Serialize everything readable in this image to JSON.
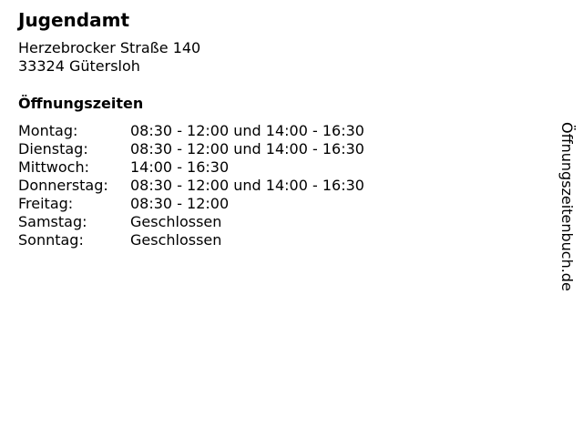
{
  "title": "Jugendamt",
  "address": {
    "street": "Herzebrocker Straße 140",
    "city": "33324 Gütersloh"
  },
  "hours_heading": "Öffnungszeiten",
  "hours": [
    {
      "day": "Montag:",
      "time": "08:30 - 12:00 und 14:00 - 16:30"
    },
    {
      "day": "Dienstag:",
      "time": "08:30 - 12:00 und 14:00 - 16:30"
    },
    {
      "day": "Mittwoch:",
      "time": "14:00 - 16:30"
    },
    {
      "day": "Donnerstag:",
      "time": "08:30 - 12:00 und 14:00 - 16:30"
    },
    {
      "day": "Freitag:",
      "time": "08:30 - 12:00"
    },
    {
      "day": "Samstag:",
      "time": "Geschlossen"
    },
    {
      "day": "Sonntag:",
      "time": "Geschlossen"
    }
  ],
  "watermark": "Öffnungszeitenbuch.de"
}
